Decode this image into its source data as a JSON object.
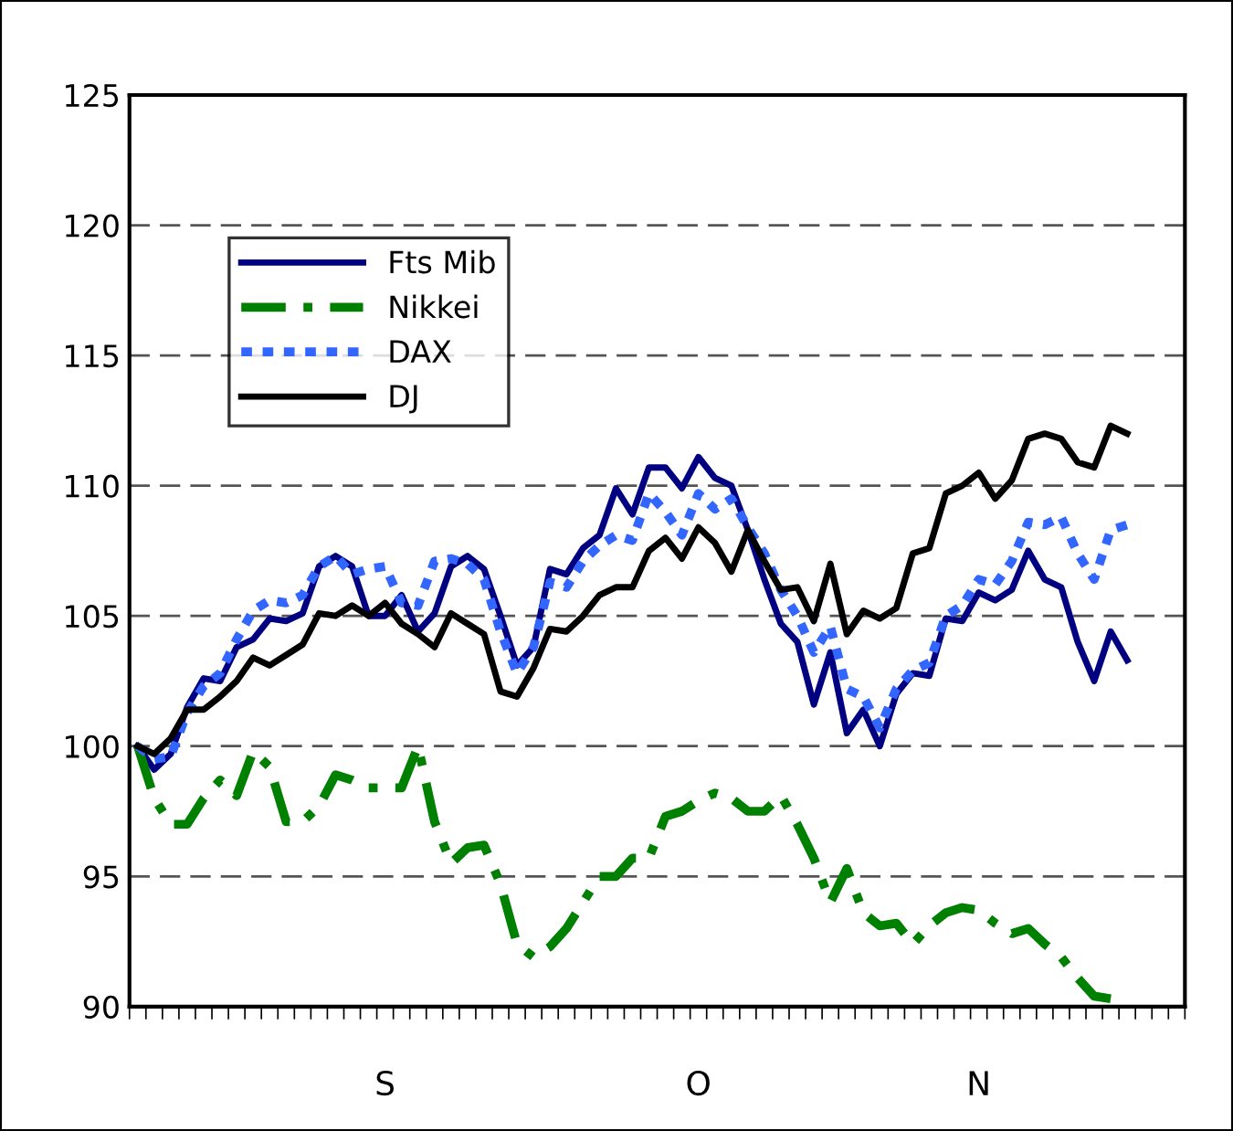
{
  "chart_data": {
    "type": "line",
    "categories": [
      null,
      null,
      null,
      null,
      null,
      null,
      null,
      null,
      null,
      null,
      null,
      null,
      null,
      null,
      null,
      "S",
      null,
      null,
      null,
      null,
      null,
      null,
      null,
      null,
      null,
      null,
      null,
      null,
      null,
      null,
      null,
      null,
      null,
      null,
      "O",
      null,
      null,
      null,
      null,
      null,
      null,
      null,
      null,
      null,
      null,
      null,
      null,
      null,
      null,
      null,
      null,
      "N",
      null,
      null,
      null,
      null,
      null,
      null,
      null,
      null,
      null,
      null,
      null,
      null
    ],
    "ylim": [
      90,
      125
    ],
    "yticks": [
      90,
      95,
      100,
      105,
      110,
      115,
      120,
      125
    ],
    "grid": "y",
    "legend": "top left",
    "series": [
      {
        "name": "Fts Mib",
        "color": "#000080",
        "line_style": "solid",
        "values": [
          100,
          99.1,
          99.7,
          101.5,
          102.6,
          102.5,
          103.8,
          104.1,
          104.9,
          104.8,
          105.1,
          106.9,
          107.3,
          106.9,
          105.0,
          105.0,
          105.8,
          104.4,
          105.1,
          106.9,
          107.3,
          106.8,
          105.0,
          103.1,
          103.8,
          106.8,
          106.6,
          107.6,
          108.1,
          109.9,
          108.9,
          110.7,
          110.7,
          109.9,
          111.1,
          110.3,
          110.0,
          108.3,
          106.4,
          104.7,
          104.0,
          101.6,
          103.6,
          100.5,
          101.4,
          100.0,
          102.0,
          102.8,
          102.7,
          104.9,
          104.8,
          105.9,
          105.6,
          106.0,
          107.5,
          106.4,
          106.1,
          104.0,
          102.5,
          104.4,
          103.3,
          null,
          null,
          null
        ]
      },
      {
        "name": "Nikkei",
        "color": "#008000",
        "line_style": "dashdot",
        "values": [
          100,
          98.0,
          97.0,
          97.0,
          98.0,
          98.7,
          98.1,
          99.8,
          99.2,
          97.1,
          97.1,
          97.7,
          98.9,
          98.7,
          98.4,
          98.4,
          98.4,
          100.0,
          97.1,
          95.5,
          96.1,
          96.2,
          94.7,
          92.4,
          91.9,
          92.3,
          93.0,
          94.0,
          95.0,
          95.0,
          95.7,
          95.7,
          97.3,
          97.5,
          97.9,
          98.2,
          98.0,
          97.5,
          97.5,
          98.1,
          97.0,
          95.7,
          94.0,
          95.3,
          93.6,
          93.1,
          93.2,
          92.4,
          93.1,
          93.6,
          93.8,
          93.7,
          93.2,
          92.8,
          93.0,
          92.4,
          91.9,
          91.1,
          90.4,
          90.3,
          null,
          null,
          null,
          null
        ]
      },
      {
        "name": "DAX",
        "color": "#3366ff",
        "line_style": "dotted",
        "values": [
          100,
          99.5,
          99.6,
          101.3,
          102.3,
          102.8,
          104.1,
          105.2,
          105.6,
          105.5,
          105.8,
          106.9,
          107.3,
          106.6,
          106.8,
          106.9,
          105.5,
          105.4,
          107.1,
          107.2,
          107.0,
          106.4,
          104.4,
          102.8,
          103.8,
          106.3,
          106.1,
          107.1,
          107.7,
          108.1,
          107.9,
          109.7,
          109.0,
          108.1,
          109.7,
          109.1,
          109.5,
          108.4,
          107.4,
          106.0,
          105.0,
          103.6,
          104.6,
          102.2,
          101.9,
          100.7,
          102.2,
          102.9,
          103.2,
          105.0,
          105.4,
          106.4,
          106.2,
          107.1,
          108.6,
          108.5,
          108.8,
          107.4,
          106.4,
          108.3,
          108.5,
          null,
          null,
          null
        ]
      },
      {
        "name": "DJ",
        "color": "#000000",
        "line_style": "solid",
        "values": [
          100,
          99.7,
          100.3,
          101.4,
          101.4,
          101.9,
          102.5,
          103.4,
          103.1,
          103.5,
          103.9,
          105.1,
          105.0,
          105.4,
          105.0,
          105.5,
          104.7,
          104.3,
          103.8,
          105.1,
          104.7,
          104.3,
          102.1,
          101.9,
          103.0,
          104.5,
          104.4,
          105.0,
          105.8,
          106.1,
          106.1,
          107.5,
          108.0,
          107.2,
          108.4,
          107.8,
          106.7,
          108.3,
          107.1,
          106.0,
          106.1,
          104.8,
          107.0,
          104.3,
          105.2,
          104.9,
          105.3,
          107.4,
          107.6,
          109.7,
          110.0,
          110.5,
          109.5,
          110.2,
          111.8,
          112.0,
          111.8,
          110.9,
          110.7,
          112.3,
          112.0,
          null,
          null,
          null
        ]
      }
    ]
  }
}
